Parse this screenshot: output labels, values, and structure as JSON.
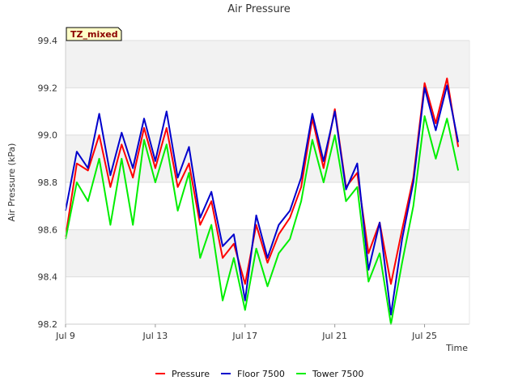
{
  "chart_data": {
    "type": "line",
    "title": "Air Pressure",
    "xlabel": "Time",
    "ylabel": "Air Pressure (kPa)",
    "badge": "TZ_mixed",
    "x_unit": "days since Jul 9",
    "xlim": [
      0,
      18.0
    ],
    "ylim": [
      98.2,
      99.4
    ],
    "yticks": [
      98.2,
      98.4,
      98.6,
      98.8,
      99.0,
      99.2,
      99.4
    ],
    "ytick_labels": [
      "98.2",
      "98.4",
      "98.6",
      "98.8",
      "99.0",
      "99.2",
      "99.4"
    ],
    "xticks": [
      0,
      4,
      8,
      12,
      16
    ],
    "xtick_labels": [
      "Jul 9",
      "Jul 13",
      "Jul 17",
      "Jul 21",
      "Jul 25"
    ],
    "grid": true,
    "legend_position": "bottom-center",
    "x": [
      0.0,
      0.5,
      1.0,
      1.5,
      2.0,
      2.5,
      3.0,
      3.5,
      4.0,
      4.5,
      5.0,
      5.5,
      6.0,
      6.5,
      7.0,
      7.5,
      8.0,
      8.5,
      9.0,
      9.5,
      10.0,
      10.5,
      11.0,
      11.5,
      12.0,
      12.5,
      13.0,
      13.5,
      14.0,
      14.5,
      15.0,
      15.5,
      16.0,
      16.5,
      17.0,
      17.5
    ],
    "series": [
      {
        "name": "Pressure",
        "color": "#ff0000",
        "values": [
          98.57,
          98.88,
          98.85,
          99.0,
          98.78,
          98.96,
          98.82,
          99.03,
          98.86,
          99.03,
          98.78,
          98.88,
          98.62,
          98.72,
          98.48,
          98.54,
          98.37,
          98.62,
          98.46,
          98.58,
          98.65,
          98.78,
          99.07,
          98.86,
          99.11,
          98.78,
          98.84,
          98.5,
          98.63,
          98.37,
          98.6,
          98.82,
          99.22,
          99.05,
          99.24,
          98.95
        ]
      },
      {
        "name": "Floor 7500",
        "color": "#0000cc",
        "values": [
          98.68,
          98.93,
          98.86,
          99.09,
          98.83,
          99.01,
          98.86,
          99.07,
          98.89,
          99.1,
          98.82,
          98.95,
          98.65,
          98.76,
          98.53,
          98.58,
          98.3,
          98.66,
          98.48,
          98.62,
          98.68,
          98.82,
          99.09,
          98.89,
          99.1,
          98.77,
          98.88,
          98.43,
          98.63,
          98.24,
          98.56,
          98.8,
          99.2,
          99.02,
          99.21,
          98.97
        ]
      },
      {
        "name": "Tower 7500",
        "color": "#00ee00",
        "values": [
          98.56,
          98.8,
          98.72,
          98.9,
          98.62,
          98.9,
          98.62,
          98.98,
          98.8,
          98.96,
          98.68,
          98.84,
          98.48,
          98.62,
          98.3,
          98.48,
          98.26,
          98.52,
          98.36,
          98.5,
          98.56,
          98.72,
          98.98,
          98.8,
          99.0,
          98.72,
          98.78,
          98.38,
          98.5,
          98.2,
          98.46,
          98.7,
          99.08,
          98.9,
          99.07,
          98.85
        ]
      }
    ]
  }
}
